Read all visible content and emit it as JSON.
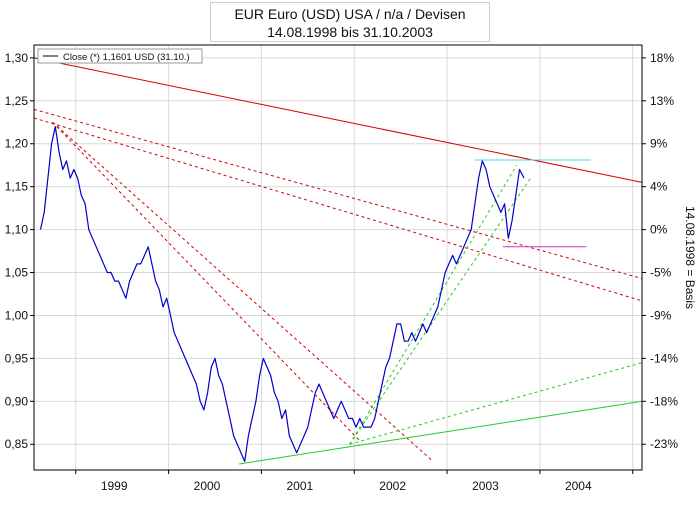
{
  "title": "EUR Euro (USD) USA / n/a / Devisen",
  "subtitle": "14.08.1998 bis 31.10.2003",
  "chart_data": {
    "type": "line",
    "title": "EUR Euro (USD) USA / n/a / Devisen",
    "subtitle": "14.08.1998 bis 31.10.2003",
    "xlabel": "",
    "ylabel_right": "14.08.1998 = Basis",
    "xlim": [
      1998.55,
      2005.1
    ],
    "ylim": [
      0.82,
      1.315
    ],
    "x_tick_labels": [
      "1999",
      "2000",
      "2001",
      "2002",
      "2003",
      "2004"
    ],
    "y_tick_labels": [
      "1,30",
      "1,25",
      "1,20",
      "1,15",
      "1,10",
      "1,05",
      "1,00",
      "0,95",
      "0,90",
      "0,85"
    ],
    "y_ticks": [
      1.3,
      1.25,
      1.2,
      1.15,
      1.1,
      1.05,
      1.0,
      0.95,
      0.9,
      0.85
    ],
    "right_axis_labels": [
      "18%",
      "13%",
      "9%",
      "4%",
      "0%",
      "-5%",
      "-9%",
      "-14%",
      "-18%",
      "-23%"
    ],
    "right_axis_ticks": [
      1.3,
      1.25,
      1.2,
      1.15,
      1.1,
      1.05,
      1.0,
      0.95,
      0.9,
      0.85
    ],
    "grid": true,
    "legend": {
      "position": "top-left",
      "entries": [
        "Close (*) 1,1601 USD (31.10.)"
      ]
    },
    "colors": {
      "price": "#0000cc",
      "resistance": "#d40000",
      "support": "#22cc22",
      "cyan": "#55d5e6",
      "magenta": "#cc33cc",
      "grid": "#d9d9d9",
      "axis": "#000000"
    },
    "series": [
      {
        "name": "Close (*) 1,1601 USD (31.10.)",
        "x": [
          1998.62,
          1998.66,
          1998.7,
          1998.74,
          1998.78,
          1998.82,
          1998.86,
          1998.9,
          1998.94,
          1998.98,
          1999.02,
          1999.06,
          1999.1,
          1999.14,
          1999.18,
          1999.22,
          1999.26,
          1999.3,
          1999.34,
          1999.38,
          1999.42,
          1999.46,
          1999.5,
          1999.54,
          1999.58,
          1999.62,
          1999.66,
          1999.7,
          1999.74,
          1999.78,
          1999.82,
          1999.86,
          1999.9,
          1999.94,
          1999.98,
          2000.02,
          2000.06,
          2000.1,
          2000.14,
          2000.18,
          2000.22,
          2000.26,
          2000.3,
          2000.34,
          2000.38,
          2000.42,
          2000.46,
          2000.5,
          2000.54,
          2000.58,
          2000.62,
          2000.66,
          2000.7,
          2000.74,
          2000.78,
          2000.82,
          2000.86,
          2000.9,
          2000.94,
          2000.98,
          2001.02,
          2001.06,
          2001.1,
          2001.14,
          2001.18,
          2001.22,
          2001.26,
          2001.3,
          2001.34,
          2001.38,
          2001.42,
          2001.46,
          2001.5,
          2001.54,
          2001.58,
          2001.62,
          2001.66,
          2001.7,
          2001.74,
          2001.78,
          2001.82,
          2001.86,
          2001.9,
          2001.94,
          2001.98,
          2002.02,
          2002.06,
          2002.1,
          2002.14,
          2002.18,
          2002.22,
          2002.26,
          2002.3,
          2002.34,
          2002.38,
          2002.42,
          2002.46,
          2002.5,
          2002.54,
          2002.58,
          2002.62,
          2002.66,
          2002.7,
          2002.74,
          2002.78,
          2002.82,
          2002.86,
          2002.9,
          2002.94,
          2002.98,
          2003.02,
          2003.06,
          2003.1,
          2003.14,
          2003.18,
          2003.22,
          2003.26,
          2003.3,
          2003.34,
          2003.38,
          2003.42,
          2003.46,
          2003.5,
          2003.54,
          2003.58,
          2003.62,
          2003.66,
          2003.7,
          2003.74,
          2003.78,
          2003.83
        ],
        "y": [
          1.1,
          1.12,
          1.16,
          1.2,
          1.22,
          1.19,
          1.17,
          1.18,
          1.16,
          1.17,
          1.16,
          1.14,
          1.13,
          1.1,
          1.09,
          1.08,
          1.07,
          1.06,
          1.05,
          1.05,
          1.04,
          1.04,
          1.03,
          1.02,
          1.04,
          1.05,
          1.06,
          1.06,
          1.07,
          1.08,
          1.06,
          1.04,
          1.03,
          1.01,
          1.02,
          1.0,
          0.98,
          0.97,
          0.96,
          0.95,
          0.94,
          0.93,
          0.92,
          0.9,
          0.89,
          0.91,
          0.94,
          0.95,
          0.93,
          0.92,
          0.9,
          0.88,
          0.86,
          0.85,
          0.84,
          0.83,
          0.86,
          0.88,
          0.9,
          0.93,
          0.95,
          0.94,
          0.93,
          0.91,
          0.9,
          0.88,
          0.89,
          0.86,
          0.85,
          0.84,
          0.85,
          0.86,
          0.87,
          0.89,
          0.91,
          0.92,
          0.91,
          0.9,
          0.89,
          0.88,
          0.89,
          0.9,
          0.89,
          0.88,
          0.88,
          0.87,
          0.88,
          0.87,
          0.87,
          0.87,
          0.88,
          0.9,
          0.92,
          0.94,
          0.95,
          0.97,
          0.99,
          0.99,
          0.97,
          0.97,
          0.98,
          0.97,
          0.98,
          0.99,
          0.98,
          0.99,
          1.0,
          1.01,
          1.03,
          1.05,
          1.06,
          1.07,
          1.06,
          1.07,
          1.08,
          1.09,
          1.1,
          1.13,
          1.16,
          1.18,
          1.17,
          1.15,
          1.14,
          1.13,
          1.12,
          1.13,
          1.09,
          1.11,
          1.14,
          1.17,
          1.16
        ]
      }
    ],
    "trend_lines": [
      {
        "name": "resistance-main",
        "color": "red",
        "style": "solid",
        "from": [
          1998.55,
          1.3
        ],
        "to": [
          2005.1,
          1.155
        ]
      },
      {
        "name": "resistance-dash-1",
        "color": "red",
        "style": "dashed",
        "from": [
          1998.55,
          1.24
        ],
        "to": [
          2005.1,
          1.043
        ]
      },
      {
        "name": "resistance-dash-2",
        "color": "red",
        "style": "dashed",
        "from": [
          1998.55,
          1.23
        ],
        "to": [
          2005.1,
          1.017
        ]
      },
      {
        "name": "resistance-dash-3",
        "color": "red",
        "style": "dashed",
        "from": [
          1998.75,
          1.225
        ],
        "to": [
          2002.05,
          0.855
        ]
      },
      {
        "name": "resistance-dash-4",
        "color": "red",
        "style": "dashed",
        "from": [
          1998.75,
          1.225
        ],
        "to": [
          2002.85,
          0.83
        ]
      },
      {
        "name": "support-main",
        "color": "green",
        "style": "solid",
        "from": [
          2000.76,
          0.827
        ],
        "to": [
          2005.1,
          0.9
        ]
      },
      {
        "name": "support-dash-1",
        "color": "green",
        "style": "dashed",
        "from": [
          2001.95,
          0.85
        ],
        "to": [
          2005.1,
          0.945
        ]
      },
      {
        "name": "support-dash-2",
        "color": "green",
        "style": "dashed",
        "from": [
          2001.95,
          0.85
        ],
        "to": [
          2003.75,
          1.175
        ]
      },
      {
        "name": "support-dash-3",
        "color": "green",
        "style": "dashed",
        "from": [
          2001.95,
          0.85
        ],
        "to": [
          2003.9,
          1.16
        ]
      }
    ],
    "horizontal_markers": [
      {
        "name": "cyan-high",
        "color": "cyan",
        "y": 1.181,
        "from_x": 2003.3,
        "to_x": 2004.55
      },
      {
        "name": "magenta-low",
        "color": "magenta",
        "y": 1.08,
        "from_x": 2003.6,
        "to_x": 2004.5
      }
    ]
  }
}
